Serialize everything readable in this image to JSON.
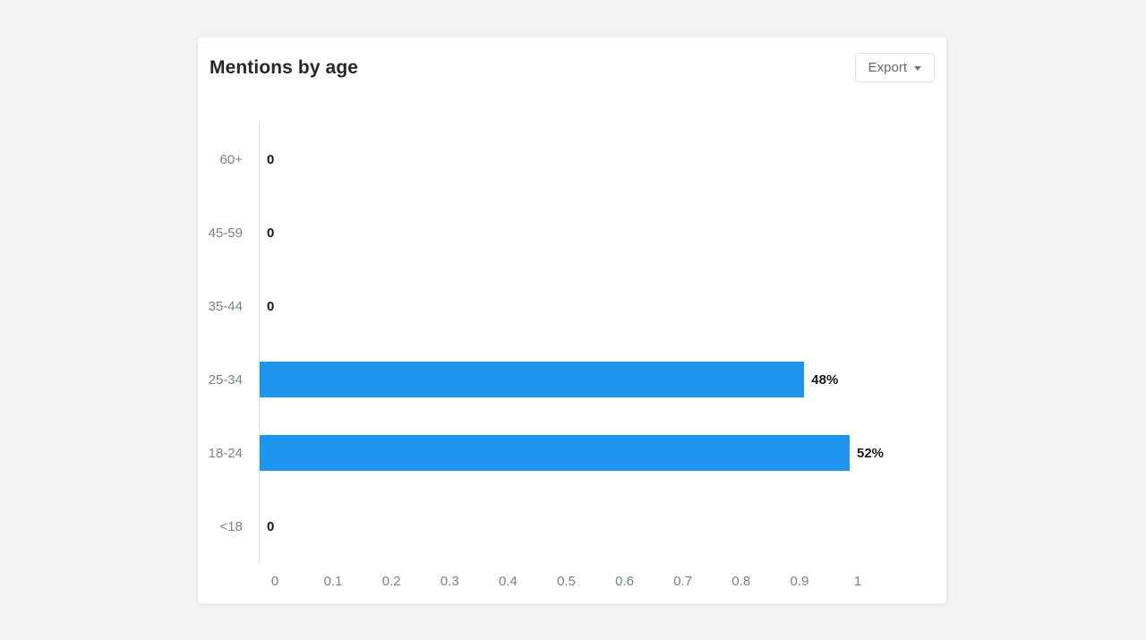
{
  "page": {
    "background": "#f1f3f4"
  },
  "card": {
    "title": "Mentions by age",
    "export_button": {
      "label": "Export"
    }
  },
  "chart_data": {
    "type": "bar",
    "orientation": "horizontal",
    "title": "Mentions by age",
    "categories": [
      "60+",
      "45-59",
      "35-44",
      "25-34",
      "18-24",
      "<18"
    ],
    "values": [
      0,
      0,
      0,
      48,
      52,
      0
    ],
    "value_labels": [
      "0",
      "0",
      "0",
      "48%",
      "52%",
      "0"
    ],
    "x_ticks": [
      "0",
      "0.1",
      "0.2",
      "0.3",
      "0.4",
      "0.5",
      "0.6",
      "0.7",
      "0.8",
      "0.9",
      "1"
    ],
    "xlim": [
      0,
      1
    ],
    "xlabel": "",
    "ylabel": "",
    "bar_color": "#1e96f0",
    "axis_line_color": "#d9e5ee",
    "label_color": "#78828c",
    "value_label_color": "#17191b",
    "grid": "off",
    "legend": "none"
  }
}
